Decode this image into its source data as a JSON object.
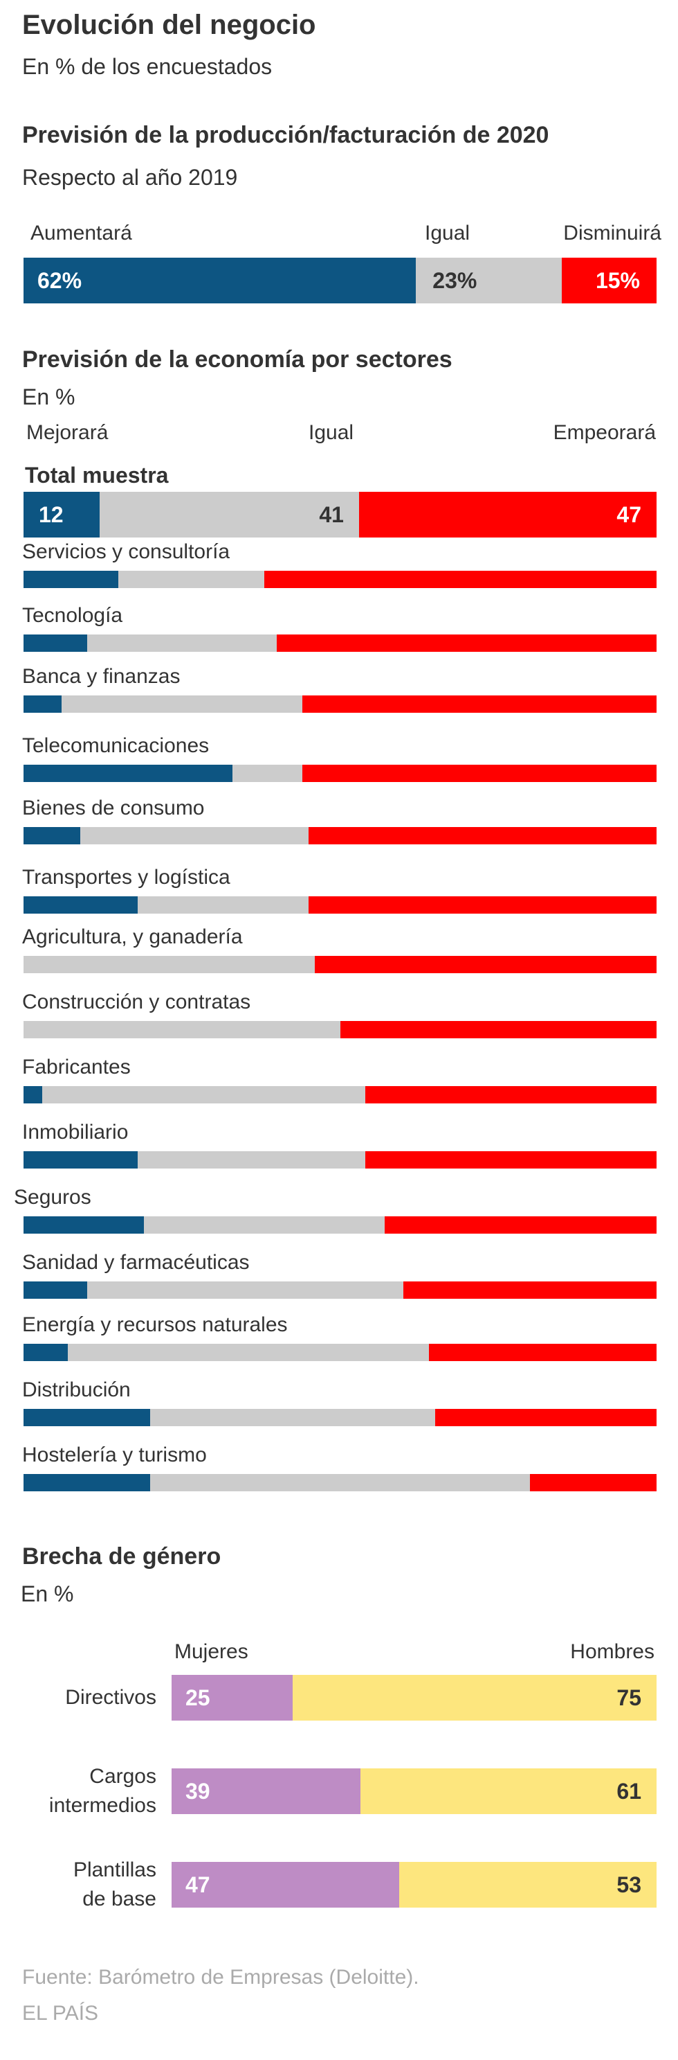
{
  "header": {
    "title": "Evolución del negocio",
    "subtitle": "En % de los encuestados"
  },
  "colors": {
    "blue": "#0d5582",
    "gray": "#cccccc",
    "red": "#ff0000",
    "purple": "#be8cc5",
    "yellow": "#fde67e",
    "text": "#333333",
    "source": "#aaaaaa"
  },
  "production": {
    "title": "Previsión de la producción/facturación de 2020",
    "subtitle": "Respecto al año 2019",
    "legend": [
      "Aumentará",
      "Igual",
      "Disminuirá"
    ],
    "value_labels": [
      "62%",
      "23%",
      "15%"
    ]
  },
  "sectors": {
    "title": "Previsión de la economía por sectores",
    "subtitle": "En %",
    "legend": [
      "Mejorará",
      "Igual",
      "Empeorará"
    ],
    "total_label": "Total muestra",
    "total_value_labels": [
      "12",
      "41",
      "47"
    ]
  },
  "gender": {
    "title": "Brecha de género",
    "subtitle": "En %",
    "legend": [
      "Mujeres",
      "Hombres"
    ],
    "rows": [
      {
        "label_lines": [
          "Directivos"
        ],
        "value_labels": [
          "25",
          "75"
        ]
      },
      {
        "label_lines": [
          "Cargos",
          "intermedios"
        ],
        "value_labels": [
          "39",
          "61"
        ]
      },
      {
        "label_lines": [
          "Plantillas",
          "de base"
        ],
        "value_labels": [
          "47",
          "53"
        ]
      }
    ]
  },
  "footer": {
    "source": "Fuente: Barómetro de Empresas (Deloitte).",
    "publisher": "EL PAÍS"
  },
  "chart_data": [
    {
      "type": "bar",
      "orientation": "horizontal",
      "stacked": true,
      "title": "Previsión de la producción/facturación de 2020",
      "subtitle": "Respecto al año 2019",
      "categories": [
        ""
      ],
      "series": [
        {
          "name": "Aumentará",
          "values": [
            62
          ]
        },
        {
          "name": "Igual",
          "values": [
            23
          ]
        },
        {
          "name": "Disminuirá",
          "values": [
            15
          ]
        }
      ],
      "xlim": [
        0,
        100
      ],
      "grid": false,
      "legend": "top"
    },
    {
      "type": "bar",
      "orientation": "horizontal",
      "stacked": true,
      "title": "Previsión de la economía por sectores",
      "subtitle": "En %",
      "categories": [
        "Total muestra",
        "Servicios y consultoría",
        "Tecnología",
        "Banca y finanzas",
        "Telecomunicaciones",
        "Bienes de consumo",
        "Transportes y logística",
        "Agricultura, y ganadería",
        "Construcción y contratas",
        "Fabricantes",
        "Inmobiliario",
        "Seguros",
        "Sanidad y farmacéuticas",
        "Energía y recursos naturales",
        "Distribución",
        "Hostelería y turismo"
      ],
      "series": [
        {
          "name": "Mejorará",
          "values": [
            12,
            15,
            10,
            6,
            33,
            9,
            18,
            0,
            0,
            3,
            18,
            19,
            10,
            7,
            20,
            20
          ]
        },
        {
          "name": "Igual",
          "values": [
            41,
            23,
            30,
            38,
            11,
            36,
            27,
            46,
            50,
            51,
            36,
            38,
            50,
            57,
            45,
            60
          ]
        },
        {
          "name": "Empeorará",
          "values": [
            47,
            62,
            60,
            56,
            56,
            55,
            55,
            54,
            50,
            46,
            46,
            43,
            40,
            36,
            35,
            20
          ]
        }
      ],
      "xlim": [
        0,
        100
      ],
      "grid": false,
      "legend": "top"
    },
    {
      "type": "bar",
      "orientation": "horizontal",
      "stacked": true,
      "title": "Brecha de género",
      "subtitle": "En %",
      "categories": [
        "Directivos",
        "Cargos intermedios",
        "Plantillas de base"
      ],
      "series": [
        {
          "name": "Mujeres",
          "values": [
            25,
            39,
            47
          ]
        },
        {
          "name": "Hombres",
          "values": [
            75,
            61,
            53
          ]
        }
      ],
      "xlim": [
        0,
        100
      ],
      "grid": false,
      "legend": "top"
    }
  ]
}
